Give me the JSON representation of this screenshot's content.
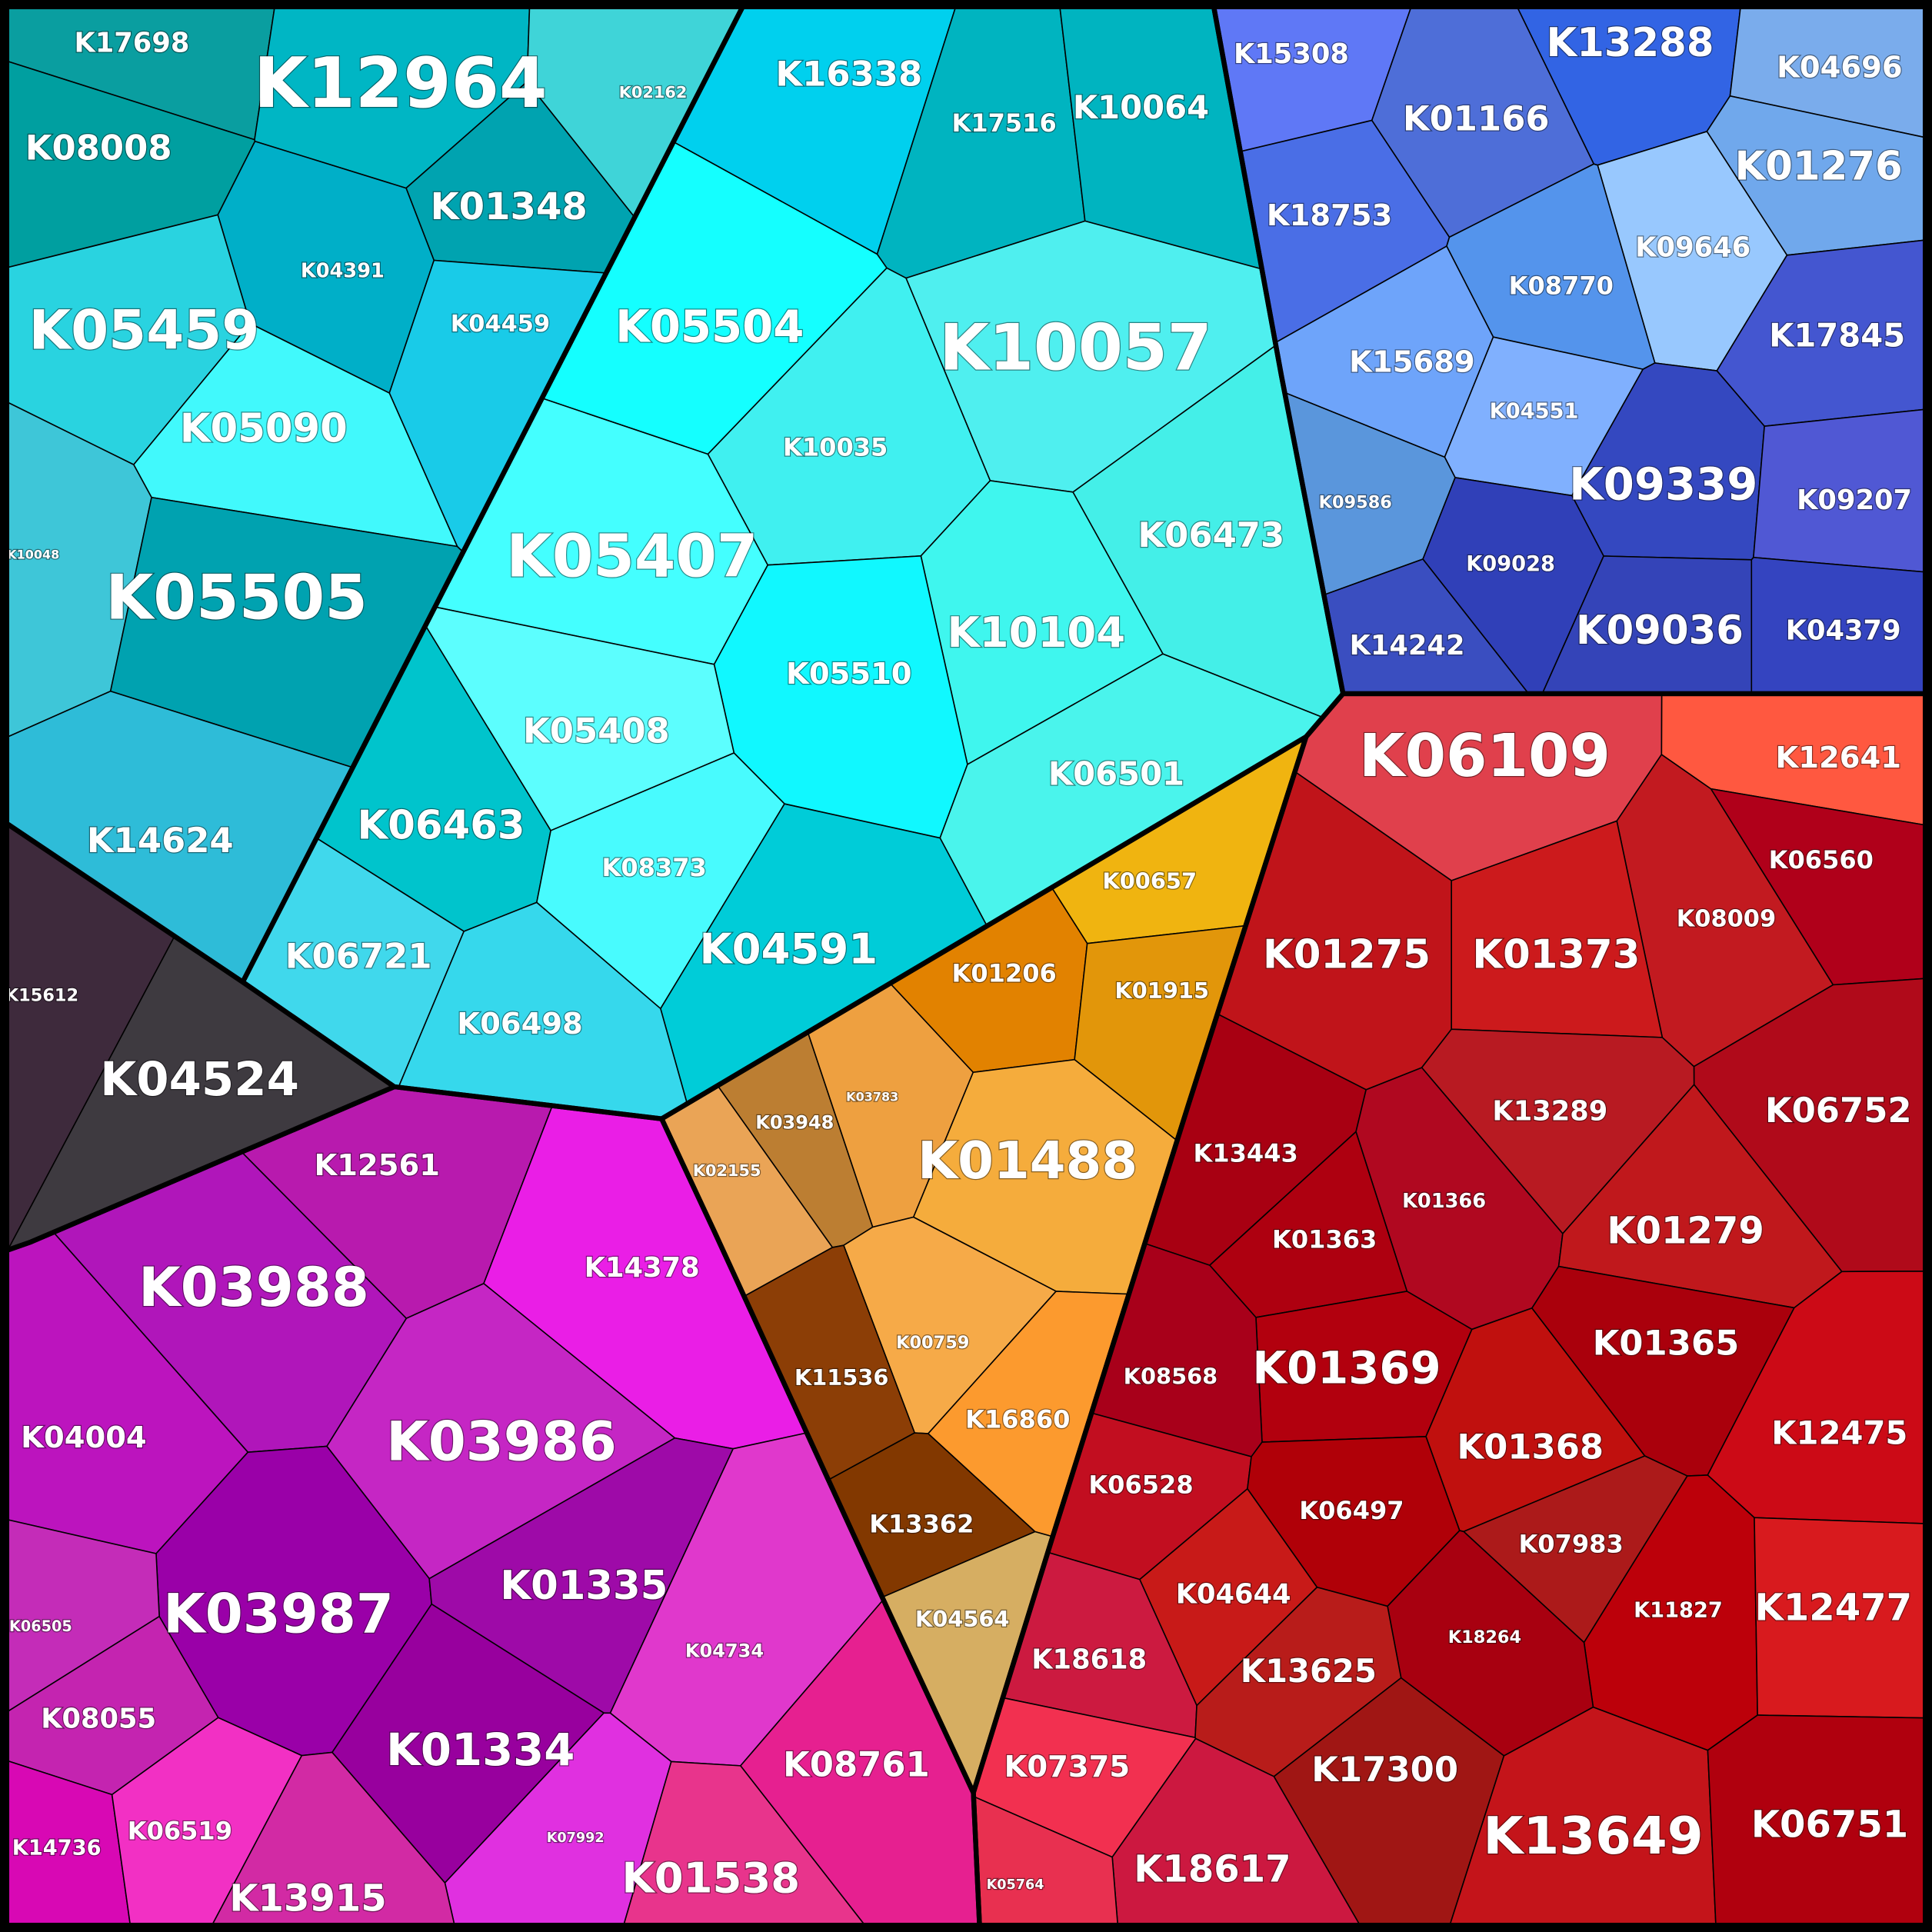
{
  "groups": [
    {
      "cells": [
        {
          "label": "K17698",
          "color": "#0a9ea0"
        },
        {
          "label": "K12964",
          "color": "#00b6c4"
        },
        {
          "label": "K02162",
          "color": "#3fd4d8"
        },
        {
          "label": "K08008",
          "color": "#009fa0"
        },
        {
          "label": "K01348",
          "color": "#00a3b0"
        },
        {
          "label": "K04391",
          "color": "#00afc8"
        },
        {
          "label": "K04459",
          "color": "#19cbe8"
        },
        {
          "label": "K05459",
          "color": "#29d3e0"
        },
        {
          "label": "K05090",
          "color": "#41f9fc"
        },
        {
          "label": "K10048",
          "color": "#3ec6d8"
        },
        {
          "label": "K05505",
          "color": "#00a2b0"
        },
        {
          "label": "K14624",
          "color": "#2ebcd8"
        }
      ]
    },
    {
      "cells": [
        {
          "label": "K16338",
          "color": "#00d0ee"
        },
        {
          "label": "K17516",
          "color": "#00b4c0"
        },
        {
          "label": "K10064",
          "color": "#00b4c0"
        },
        {
          "label": "K05504",
          "color": "#14ffff"
        },
        {
          "label": "K10057",
          "color": "#4fefef"
        },
        {
          "label": "K10035",
          "color": "#40f0f0"
        },
        {
          "label": "K05407",
          "color": "#44ffff"
        },
        {
          "label": "K06473",
          "color": "#44efe8"
        },
        {
          "label": "K10104",
          "color": "#3ff6ee"
        },
        {
          "label": "K05510",
          "color": "#10f8ff"
        },
        {
          "label": "K05408",
          "color": "#5cfefe"
        },
        {
          "label": "K06501",
          "color": "#4af4ec"
        },
        {
          "label": "K06463",
          "color": "#00c4cc"
        },
        {
          "label": "K08373",
          "color": "#48fbfe"
        },
        {
          "label": "K06721",
          "color": "#40d8ec"
        },
        {
          "label": "K04591",
          "color": "#00ccd8"
        },
        {
          "label": "K06498",
          "color": "#36d8ec"
        }
      ]
    },
    {
      "cells": [
        {
          "label": "K15612",
          "color": "#3e2a3c"
        },
        {
          "label": "K04524",
          "color": "#3e3a40"
        }
      ]
    },
    {
      "cells": [
        {
          "label": "K12561",
          "color": "#b81aae"
        },
        {
          "label": "K14378",
          "color": "#ea1ee6"
        },
        {
          "label": "K03988",
          "color": "#b016ba"
        },
        {
          "label": "K04004",
          "color": "#bc14be"
        },
        {
          "label": "K03986",
          "color": "#c526c4"
        },
        {
          "label": "K03987",
          "color": "#9a00a8"
        },
        {
          "label": "K01335",
          "color": "#9e0aa8"
        },
        {
          "label": "K06505",
          "color": "#c42cb8"
        },
        {
          "label": "K04734",
          "color": "#e038cc"
        },
        {
          "label": "K08055",
          "color": "#c424b0"
        },
        {
          "label": "K01334",
          "color": "#98009e"
        },
        {
          "label": "K08761",
          "color": "#e62090"
        },
        {
          "label": "K14736",
          "color": "#d808b4"
        },
        {
          "label": "K06519",
          "color": "#f230c4"
        },
        {
          "label": "K07992",
          "color": "#e030e0"
        },
        {
          "label": "K01538",
          "color": "#e8348c"
        },
        {
          "label": "K13915",
          "color": "#d22aa4"
        }
      ]
    },
    {
      "cells": [
        {
          "label": "K00657",
          "color": "#f0b410"
        },
        {
          "label": "K01206",
          "color": "#e28200"
        },
        {
          "label": "K01915",
          "color": "#e2960a"
        },
        {
          "label": "K03948",
          "color": "#bc7e32"
        },
        {
          "label": "K03783",
          "color": "#eea040"
        },
        {
          "label": "K01488",
          "color": "#f5ac3c"
        },
        {
          "label": "K02155",
          "color": "#eaa456"
        },
        {
          "label": "K00759",
          "color": "#f6aa48"
        },
        {
          "label": "K11536",
          "color": "#8c3e06"
        },
        {
          "label": "K16860",
          "color": "#fc9a2e"
        },
        {
          "label": "K13362",
          "color": "#823800"
        },
        {
          "label": "K04564",
          "color": "#d6ae62"
        }
      ]
    },
    {
      "cells": [
        {
          "label": "K06109",
          "color": "#e0404c"
        },
        {
          "label": "K12641",
          "color": "#ff5840"
        },
        {
          "label": "K06560",
          "color": "#b0001a"
        },
        {
          "label": "K08009",
          "color": "#c21a20"
        },
        {
          "label": "K01275",
          "color": "#c0141a"
        },
        {
          "label": "K01373",
          "color": "#cc1a1c"
        },
        {
          "label": "K06752",
          "color": "#b00a1a"
        },
        {
          "label": "K13289",
          "color": "#b81a22"
        },
        {
          "label": "K13443",
          "color": "#a80012"
        },
        {
          "label": "K01366",
          "color": "#b00820"
        },
        {
          "label": "K01279",
          "color": "#c0181c"
        },
        {
          "label": "K01363",
          "color": "#ae0010"
        },
        {
          "label": "K01365",
          "color": "#aa000c"
        },
        {
          "label": "K01369",
          "color": "#b2000e"
        },
        {
          "label": "K08568",
          "color": "#a8001a"
        },
        {
          "label": "K12475",
          "color": "#cc0a16"
        },
        {
          "label": "K01368",
          "color": "#c0100e"
        },
        {
          "label": "K06528",
          "color": "#c20e20"
        },
        {
          "label": "K06497",
          "color": "#b00008"
        },
        {
          "label": "K07983",
          "color": "#ac1a1a"
        },
        {
          "label": "K04644",
          "color": "#c81a18"
        },
        {
          "label": "K11827",
          "color": "#bc000a"
        },
        {
          "label": "K12477",
          "color": "#d81a1e"
        },
        {
          "label": "K18264",
          "color": "#a80010"
        },
        {
          "label": "K18618",
          "color": "#cc1a40"
        },
        {
          "label": "K13625",
          "color": "#b81c1a"
        },
        {
          "label": "K07375",
          "color": "#f23050"
        },
        {
          "label": "K17300",
          "color": "#a01614"
        },
        {
          "label": "K13649",
          "color": "#c4141a"
        },
        {
          "label": "K06751",
          "color": "#b0000e"
        },
        {
          "label": "K18617",
          "color": "#cc1840"
        },
        {
          "label": "K05764",
          "color": "#e83050"
        }
      ]
    },
    {
      "cells": [
        {
          "label": "K15308",
          "color": "#5f78f6"
        },
        {
          "label": "K13288",
          "color": "#3264e4"
        },
        {
          "label": "K04696",
          "color": "#7aacec"
        },
        {
          "label": "K01166",
          "color": "#4e6ed8"
        },
        {
          "label": "K01276",
          "color": "#70a8ec"
        },
        {
          "label": "K18753",
          "color": "#4a6ee6"
        },
        {
          "label": "K09646",
          "color": "#98c8fe"
        },
        {
          "label": "K08770",
          "color": "#5494ec"
        },
        {
          "label": "K17845",
          "color": "#4456d0"
        },
        {
          "label": "K15689",
          "color": "#6ea4fa"
        },
        {
          "label": "K04551",
          "color": "#80b0fe"
        },
        {
          "label": "K09339",
          "color": "#3448c0"
        },
        {
          "label": "K09586",
          "color": "#5a96dc"
        },
        {
          "label": "K09207",
          "color": "#5058d4"
        },
        {
          "label": "K09028",
          "color": "#3040b8"
        },
        {
          "label": "K09036",
          "color": "#3444b8"
        },
        {
          "label": "K04379",
          "color": "#3444c0"
        },
        {
          "label": "K14242",
          "color": "#3a4ec0"
        }
      ]
    }
  ]
}
